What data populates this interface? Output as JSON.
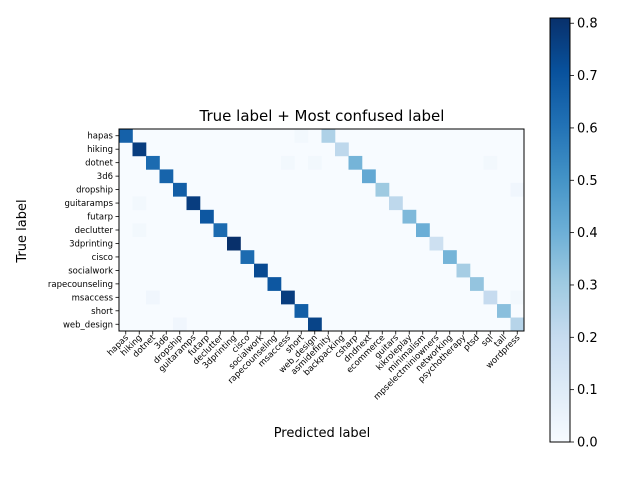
{
  "chart_data": [
    {
      "type": "heatmap",
      "title": "True label + Most confused label",
      "xlabel": "Predicted label",
      "ylabel": "True label",
      "y_categories": [
        "hapas",
        "hiking",
        "dotnet",
        "3d6",
        "dropship",
        "guitaramps",
        "futarp",
        "declutter",
        "3dprinting",
        "cisco",
        "socialwork",
        "rapecounseling",
        "msaccess",
        "short",
        "web_design"
      ],
      "x_categories": [
        "hapas",
        "hiking",
        "dotnet",
        "3d6",
        "dropship",
        "guitaramps",
        "futarp",
        "declutter",
        "3dprinting",
        "cisco",
        "socialwork",
        "rapecounseling",
        "msaccess",
        "short",
        "web_design",
        "asmidefinity",
        "backpacking",
        "csharp",
        "dndnext",
        "ecommerce",
        "guitars",
        "kikroleplay",
        "minimalism",
        "mpselectminiowners",
        "networking",
        "psychotherapy",
        "ptsd",
        "sql",
        "tall",
        "wordpress"
      ],
      "cells": [
        {
          "row": "hapas",
          "col": "hapas",
          "value": 0.65
        },
        {
          "row": "hapas",
          "col": "asmidefinity",
          "value": 0.26
        },
        {
          "row": "hapas",
          "col": "short",
          "value": 0.02
        },
        {
          "row": "hiking",
          "col": "hiking",
          "value": 0.76
        },
        {
          "row": "hiking",
          "col": "backpacking",
          "value": 0.22
        },
        {
          "row": "dotnet",
          "col": "dotnet",
          "value": 0.62
        },
        {
          "row": "dotnet",
          "col": "csharp",
          "value": 0.38
        },
        {
          "row": "dotnet",
          "col": "msaccess",
          "value": 0.02
        },
        {
          "row": "dotnet",
          "col": "web_design",
          "value": 0.02
        },
        {
          "row": "dotnet",
          "col": "sql",
          "value": 0.02
        },
        {
          "row": "3d6",
          "col": "3d6",
          "value": 0.64
        },
        {
          "row": "3d6",
          "col": "dndnext",
          "value": 0.42
        },
        {
          "row": "dropship",
          "col": "dropship",
          "value": 0.66
        },
        {
          "row": "dropship",
          "col": "ecommerce",
          "value": 0.3
        },
        {
          "row": "dropship",
          "col": "wordpress",
          "value": 0.03
        },
        {
          "row": "guitaramps",
          "col": "guitaramps",
          "value": 0.76
        },
        {
          "row": "guitaramps",
          "col": "guitars",
          "value": 0.22
        },
        {
          "row": "guitaramps",
          "col": "hiking",
          "value": 0.02
        },
        {
          "row": "futarp",
          "col": "futarp",
          "value": 0.68
        },
        {
          "row": "futarp",
          "col": "kikroleplay",
          "value": 0.36
        },
        {
          "row": "declutter",
          "col": "declutter",
          "value": 0.62
        },
        {
          "row": "declutter",
          "col": "minimalism",
          "value": 0.4
        },
        {
          "row": "declutter",
          "col": "hiking",
          "value": 0.02
        },
        {
          "row": "3dprinting",
          "col": "3dprinting",
          "value": 0.81
        },
        {
          "row": "3dprinting",
          "col": "mpselectminiowners",
          "value": 0.17
        },
        {
          "row": "cisco",
          "col": "cisco",
          "value": 0.62
        },
        {
          "row": "cisco",
          "col": "networking",
          "value": 0.38
        },
        {
          "row": "socialwork",
          "col": "socialwork",
          "value": 0.72
        },
        {
          "row": "socialwork",
          "col": "psychotherapy",
          "value": 0.28
        },
        {
          "row": "rapecounseling",
          "col": "rapecounseling",
          "value": 0.68
        },
        {
          "row": "rapecounseling",
          "col": "ptsd",
          "value": 0.32
        },
        {
          "row": "msaccess",
          "col": "msaccess",
          "value": 0.76
        },
        {
          "row": "msaccess",
          "col": "sql",
          "value": 0.2
        },
        {
          "row": "msaccess",
          "col": "dotnet",
          "value": 0.03
        },
        {
          "row": "msaccess",
          "col": "wordpress",
          "value": 0.02
        },
        {
          "row": "short",
          "col": "short",
          "value": 0.66
        },
        {
          "row": "short",
          "col": "tall",
          "value": 0.34
        },
        {
          "row": "web_design",
          "col": "web_design",
          "value": 0.74
        },
        {
          "row": "web_design",
          "col": "wordpress",
          "value": 0.24
        },
        {
          "row": "web_design",
          "col": "dropship",
          "value": 0.03
        }
      ],
      "colormap": "Blues",
      "colorbar": {
        "min": 0.0,
        "max": 0.8,
        "ticks": [
          "0.0",
          "0.1",
          "0.2",
          "0.3",
          "0.4",
          "0.5",
          "0.6",
          "0.7",
          "0.8"
        ]
      }
    }
  ]
}
